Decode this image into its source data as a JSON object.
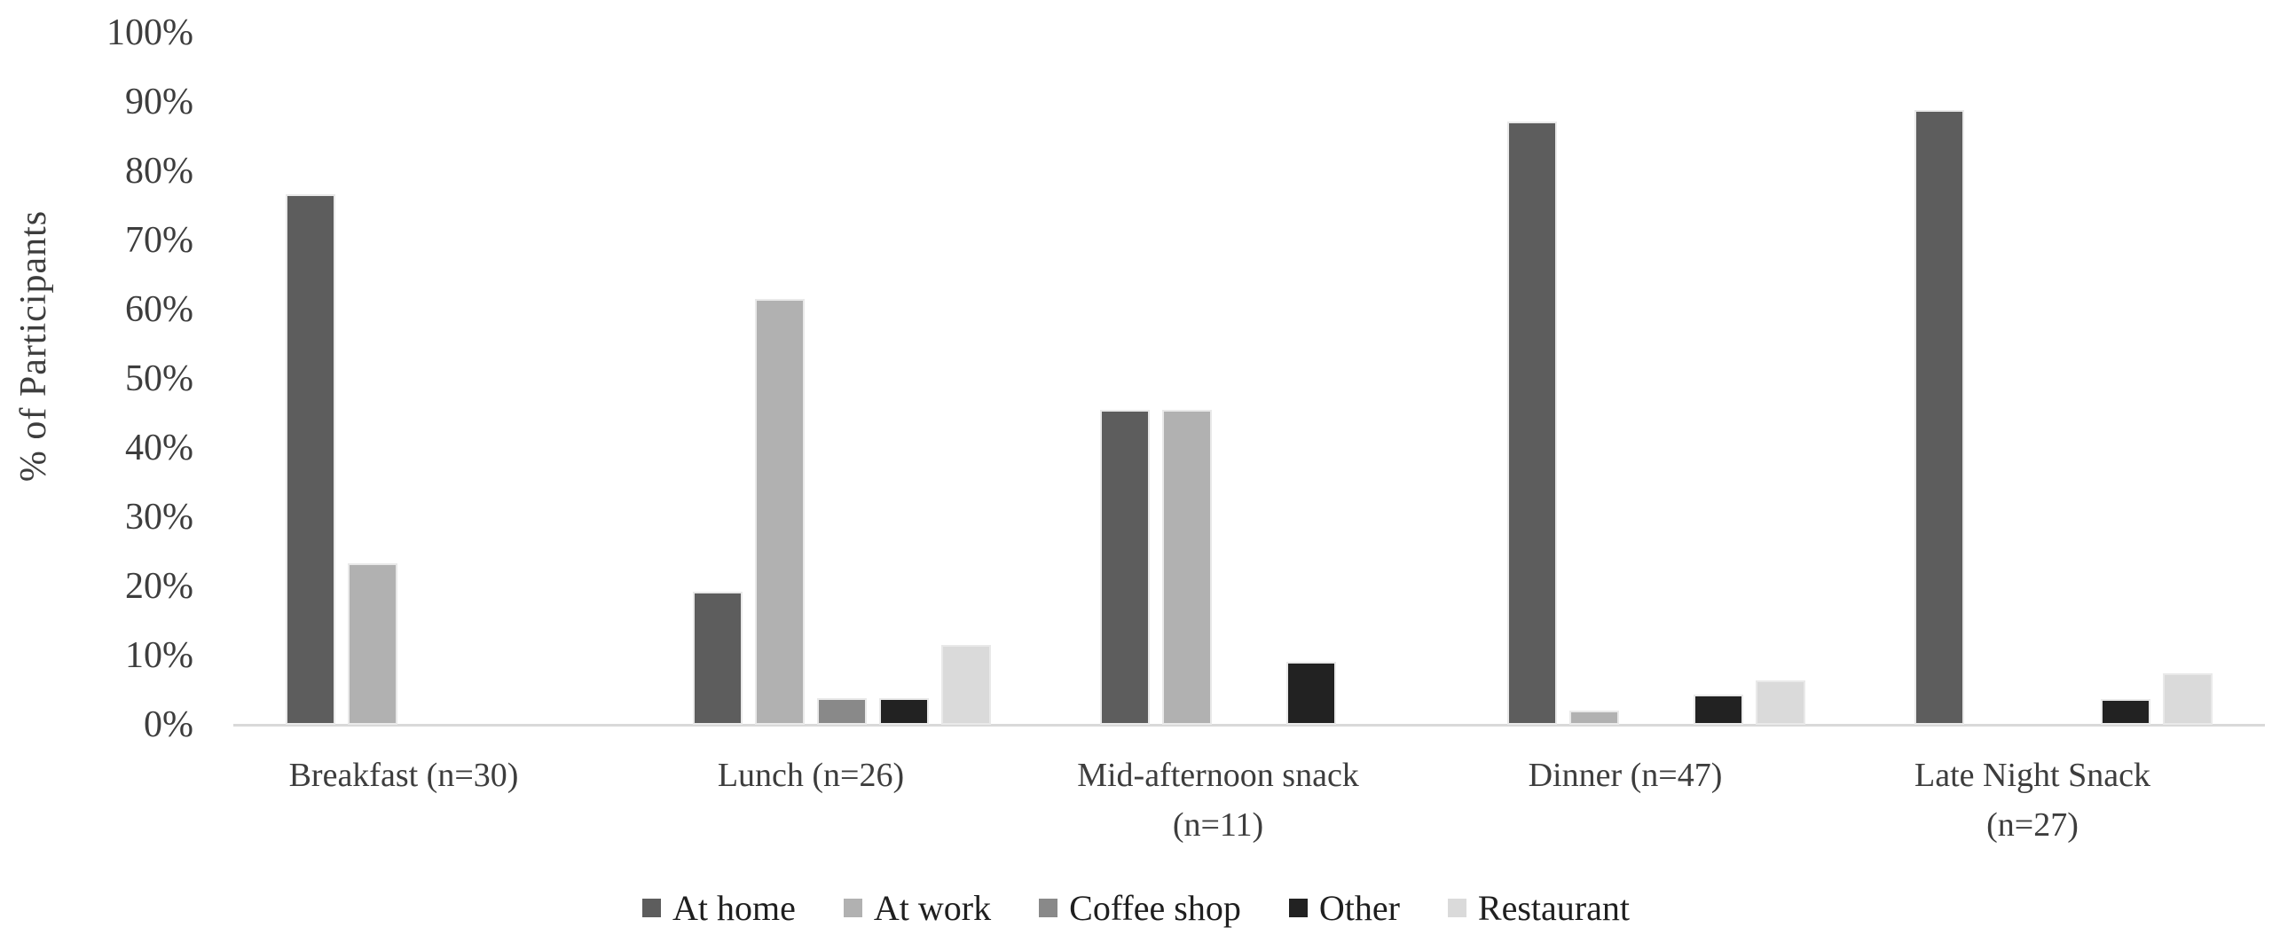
{
  "chart_data": {
    "type": "bar",
    "title": "",
    "xlabel": "",
    "ylabel": "% of Participants",
    "categories": [
      "Breakfast (n=30)",
      "Lunch (n=26)",
      "Mid-afternoon snack (n=11)",
      "Dinner (n=47)",
      "Late Night Snack (n=27)"
    ],
    "category_label_lines": [
      [
        "Breakfast (n=30)"
      ],
      [
        "Lunch (n=26)"
      ],
      [
        "Mid-afternoon snack",
        "(n=11)"
      ],
      [
        "Dinner (n=47)"
      ],
      [
        "Late Night Snack",
        "(n=27)"
      ]
    ],
    "series": [
      {
        "name": "At home",
        "color": "#5d5d5d",
        "values": [
          76.7,
          19.2,
          45.5,
          87.2,
          88.9
        ]
      },
      {
        "name": "At work",
        "color": "#b1b1b1",
        "values": [
          23.3,
          61.5,
          45.5,
          2.1,
          0
        ]
      },
      {
        "name": "Coffee shop",
        "color": "#898989",
        "values": [
          0,
          3.8,
          0,
          0,
          0
        ]
      },
      {
        "name": "Other",
        "color": "#222222",
        "values": [
          0,
          3.8,
          9.1,
          4.3,
          3.7
        ]
      },
      {
        "name": "Restaurant",
        "color": "#dadada",
        "values": [
          0,
          11.5,
          0,
          6.4,
          7.4
        ]
      }
    ],
    "y_axis": {
      "min": 0,
      "max": 100,
      "step": 10,
      "tick_suffix": "%",
      "ticks": [
        "0%",
        "10%",
        "20%",
        "30%",
        "40%",
        "50%",
        "60%",
        "70%",
        "80%",
        "90%",
        "100%"
      ]
    },
    "legend_position": "bottom",
    "grid": "off",
    "axis_line_color": "#d9d9d9"
  }
}
